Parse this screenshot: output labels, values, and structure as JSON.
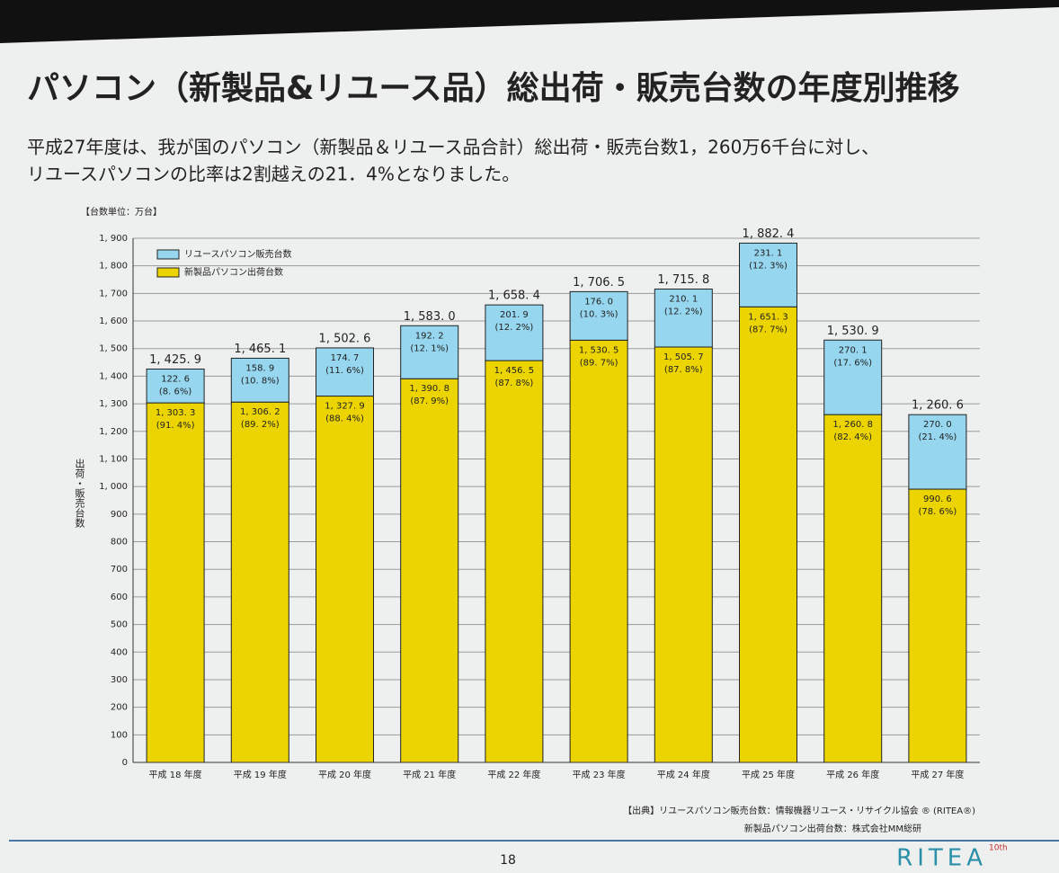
{
  "header": {
    "title": "パソコン（新製品&リユース品）総出荷・販売台数の年度別推移",
    "subtitle_lines": [
      "平成27年度は、我が国のパソコン（新製品＆リユース品合計）総出荷・販売台数1，260万6千台に対し、",
      "リユースパソコンの比率は2割越えの21．4%となりました。"
    ]
  },
  "chart_data": {
    "type": "stacked-bar",
    "unit_note": "【台数単位：万台】",
    "y_label": "出荷・販売台数",
    "categories": [
      "平成 18 年度",
      "平成 19 年度",
      "平成 20 年度",
      "平成 21 年度",
      "平成 22 年度",
      "平成 23 年度",
      "平成 24 年度",
      "平成 25 年度",
      "平成 26 年度",
      "平成 27 年度"
    ],
    "series": [
      {
        "name": "新製品パソコン出荷台数",
        "color": "#ecd400",
        "values": [
          1303.3,
          1306.2,
          1327.9,
          1390.8,
          1456.5,
          1530.5,
          1505.7,
          1651.3,
          1260.8,
          990.6
        ],
        "value_labels": [
          "1, 303. 3",
          "1, 306. 2",
          "1, 327. 9",
          "1, 390. 8",
          "1, 456. 5",
          "1, 530. 5",
          "1, 505. 7",
          "1, 651. 3",
          "1, 260. 8",
          "990. 6"
        ],
        "share_labels": [
          "(91. 4%)",
          "(89. 2%)",
          "(88. 4%)",
          "(87. 9%)",
          "(87. 8%)",
          "(89. 7%)",
          "(87. 8%)",
          "(87. 7%)",
          "(82. 4%)",
          "(78. 6%)"
        ]
      },
      {
        "name": "リユースパソコン販売台数",
        "color": "#96d6ef",
        "values": [
          122.6,
          158.9,
          174.7,
          192.2,
          201.9,
          176.0,
          210.1,
          231.1,
          270.1,
          270.0
        ],
        "value_labels": [
          "122. 6",
          "158. 9",
          "174. 7",
          "192. 2",
          "201. 9",
          "176. 0",
          "210. 1",
          "231. 1",
          "270. 1",
          "270. 0"
        ],
        "share_labels": [
          "(8. 6%)",
          "(10. 8%)",
          "(11. 6%)",
          "(12. 1%)",
          "(12. 2%)",
          "(10. 3%)",
          "(12. 2%)",
          "(12. 3%)",
          "(17. 6%)",
          "(21. 4%)"
        ]
      }
    ],
    "totals": [
      1425.9,
      1465.1,
      1502.6,
      1583.0,
      1658.4,
      1706.5,
      1715.8,
      1882.4,
      1530.9,
      1260.6
    ],
    "total_labels": [
      "1, 425. 9",
      "1, 465. 1",
      "1, 502. 6",
      "1, 583. 0",
      "1, 658. 4",
      "1, 706. 5",
      "1, 715. 8",
      "1, 882. 4",
      "1, 530. 9",
      "1, 260. 6"
    ],
    "ylim": [
      0,
      1900
    ],
    "yticks": [
      0,
      100,
      200,
      300,
      400,
      500,
      600,
      700,
      800,
      900,
      {
        "value": 1000,
        "label": "1, 000"
      },
      {
        "value": 1100,
        "label": "1, 100"
      },
      {
        "value": 1200,
        "label": "1, 200"
      },
      {
        "value": 1300,
        "label": "1, 300"
      },
      {
        "value": 1400,
        "label": "1, 400"
      },
      {
        "value": 1500,
        "label": "1, 500"
      },
      {
        "value": 1600,
        "label": "1, 600"
      },
      {
        "value": 1700,
        "label": "1, 700"
      },
      {
        "value": 1800,
        "label": "1, 800"
      },
      {
        "value": 1900,
        "label": "1, 900"
      }
    ],
    "grid": true
  },
  "footer": {
    "source_lines": [
      "【出典】リユースパソコン販売台数：情報機器リユース・リサイクル協会 ® (RITEA®)",
      "新製品パソコン出荷台数：株式会社MM総研"
    ],
    "page_number": "18",
    "logo": "RITEA",
    "logo_mark": "10th"
  }
}
